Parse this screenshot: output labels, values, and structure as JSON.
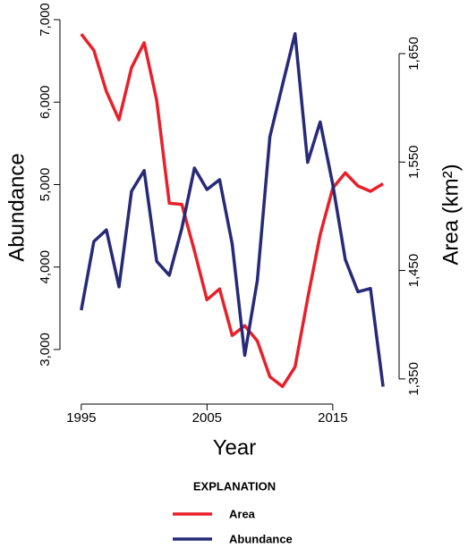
{
  "chart_data": {
    "type": "line",
    "xlabel": "Year",
    "ylabel": "Abundance",
    "y2label": "Area (km²)",
    "legend_title": "EXPLANATION",
    "x": [
      1995,
      1996,
      1997,
      1998,
      1999,
      2000,
      2001,
      2002,
      2003,
      2004,
      2005,
      2006,
      2007,
      2008,
      2009,
      2010,
      2011,
      2012,
      2013,
      2014,
      2015,
      2016,
      2017,
      2018,
      2019
    ],
    "series": [
      {
        "name": "Area",
        "color": "#e8202a",
        "axis": "y2",
        "values": [
          1668,
          1653,
          1615,
          1589,
          1637,
          1660,
          1607,
          1512,
          1511,
          1468,
          1423,
          1433,
          1390,
          1399,
          1385,
          1352,
          1343,
          1361,
          1424,
          1483,
          1526,
          1540,
          1528,
          1523,
          1530
        ]
      },
      {
        "name": "Abundance",
        "color": "#262a78",
        "values": [
          3475,
          4310,
          4450,
          3760,
          4920,
          5170,
          4070,
          3900,
          4470,
          5200,
          4940,
          5060,
          4280,
          2930,
          3840,
          5580,
          6210,
          6830,
          5270,
          5760,
          5000,
          4090,
          3700,
          3740,
          2550
        ]
      }
    ],
    "xlim": [
      1994.3,
      2019.6
    ],
    "xticks": [
      1995,
      2005,
      2015
    ],
    "ylim": [
      2400,
      7050
    ],
    "yticks": [
      {
        "value": 3000,
        "label": "3,000"
      },
      {
        "value": 4000,
        "label": "4,000"
      },
      {
        "value": 5000,
        "label": "5,000"
      },
      {
        "value": 6000,
        "label": "6,000"
      },
      {
        "value": 7000,
        "label": "7,000"
      }
    ],
    "y2lim": [
      1331.5,
      1685.1
    ],
    "y2ticks": [
      {
        "value": 1350,
        "label": "1,350"
      },
      {
        "value": 1450,
        "label": "1,450"
      },
      {
        "value": 1550,
        "label": "1,550"
      },
      {
        "value": 1650,
        "label": "1,650"
      }
    ]
  }
}
